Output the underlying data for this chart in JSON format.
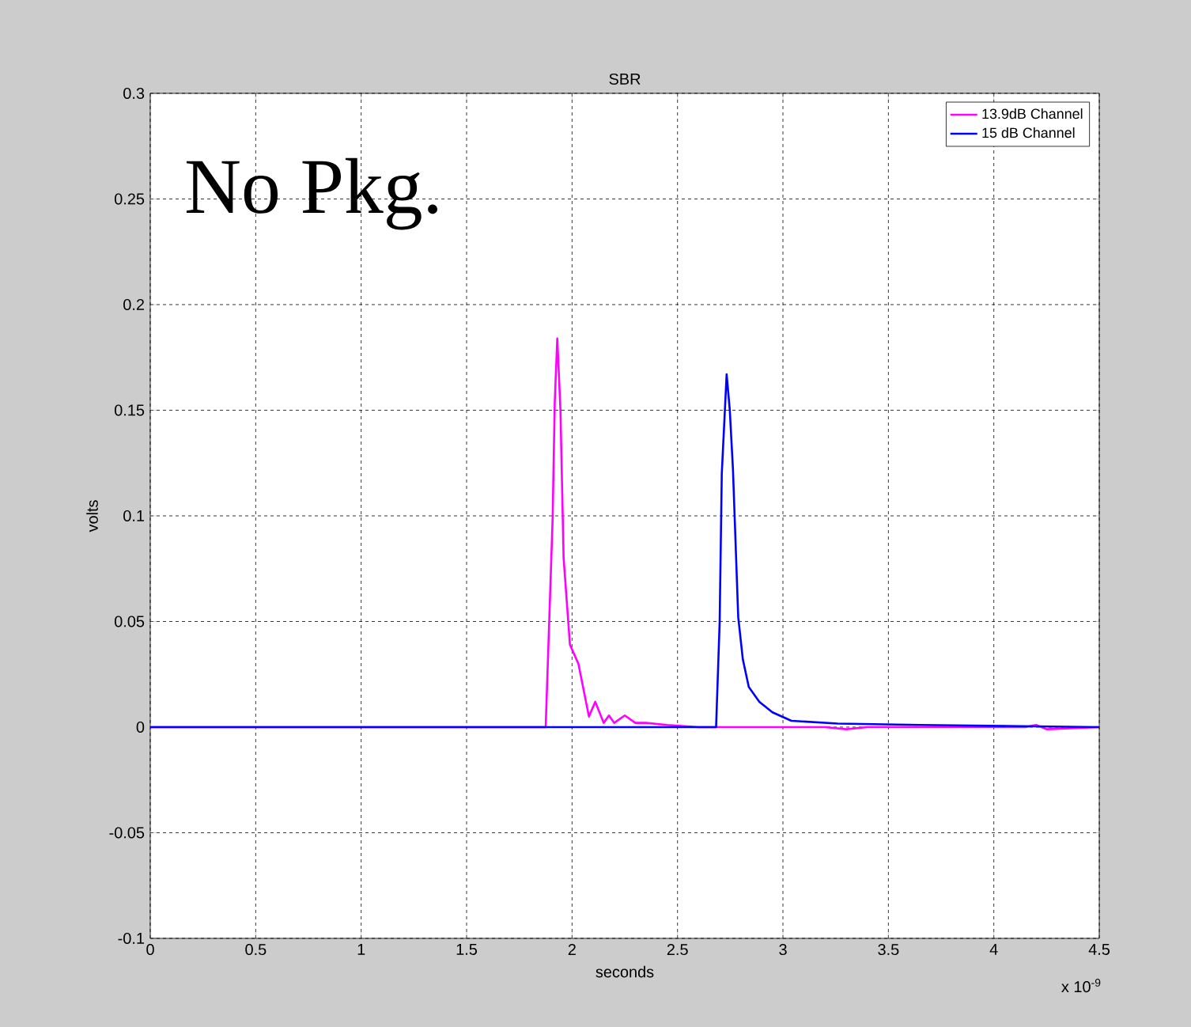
{
  "chart_data": {
    "type": "line",
    "title": "SBR",
    "xlabel": "seconds",
    "ylabel": "volts",
    "annotations": [
      "No Pkg.",
      "x 10$^{-9}$"
    ],
    "xlim": [
      0,
      4.5
    ],
    "ylim": [
      -0.1,
      0.3
    ],
    "xticks": [
      0,
      0.5,
      1,
      1.5,
      2,
      2.5,
      3,
      3.5,
      4,
      4.5
    ],
    "yticks": [
      -0.1,
      -0.05,
      0,
      0.05,
      0.1,
      0.15,
      0.2,
      0.25,
      0.3
    ],
    "grid": true,
    "legend": "top right",
    "marker": "none",
    "line_style": "solid",
    "series": [
      {
        "name": "13.9dB Channel",
        "color": "#ff00ff",
        "x": [
          0,
          1.875,
          1.908,
          1.918,
          1.93,
          1.945,
          1.96,
          1.99,
          2.03,
          2.08,
          2.11,
          2.15,
          2.175,
          2.2,
          2.25,
          2.3,
          2.35,
          2.45,
          2.6,
          3.2,
          3.3,
          3.4,
          4.15,
          4.2,
          4.25,
          4.5
        ],
        "values": [
          0,
          0,
          0.099,
          0.154,
          0.184,
          0.15,
          0.08,
          0.039,
          0.03,
          0.005,
          0.012,
          0.002,
          0.0055,
          0.002,
          0.0055,
          0.002,
          0.002,
          0.001,
          0,
          0,
          -0.001,
          0,
          0,
          0.001,
          -0.001,
          0
        ]
      },
      {
        "name": "15 dB Channel",
        "color": "#0000ff",
        "x": [
          0,
          2.683,
          2.7,
          2.71,
          2.733,
          2.748,
          2.763,
          2.788,
          2.81,
          2.838,
          2.888,
          2.95,
          3.04,
          3.26,
          3.65,
          4.5
        ],
        "values": [
          0,
          0,
          0.05,
          0.12,
          0.167,
          0.15,
          0.122,
          0.052,
          0.032,
          0.019,
          0.012,
          0.007,
          0.003,
          0.0017,
          0.001,
          0
        ]
      }
    ]
  }
}
